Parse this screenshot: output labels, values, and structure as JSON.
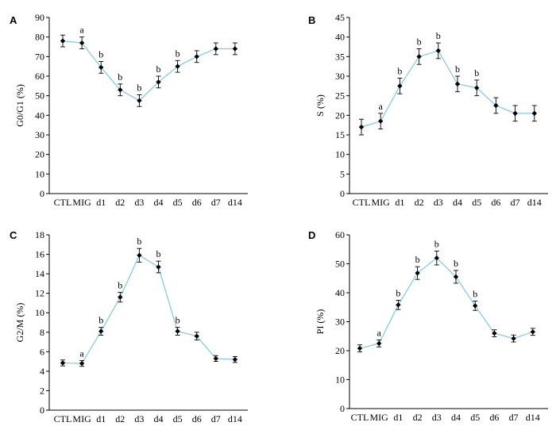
{
  "chart_data": [
    {
      "type": "line",
      "panel": "A",
      "ylabel": "G0/G1 (%)",
      "ylim": [
        0,
        90
      ],
      "ytick_step": 10,
      "categories": [
        "CTL",
        "MIG",
        "d1",
        "d2",
        "d3",
        "d4",
        "d5",
        "d6",
        "d7",
        "d14"
      ],
      "values": [
        78,
        77,
        64.5,
        53,
        47.5,
        57,
        65,
        70,
        74,
        74
      ],
      "errors": [
        3,
        3,
        3,
        3,
        3,
        3,
        3,
        3,
        3,
        3
      ],
      "annotations": [
        "",
        "a",
        "b",
        "b",
        "b",
        "b",
        "b",
        "",
        "",
        ""
      ],
      "line_color": "#7ec8e3"
    },
    {
      "type": "line",
      "panel": "B",
      "ylabel": "S (%)",
      "ylim": [
        0,
        45
      ],
      "ytick_step": 5,
      "categories": [
        "CTL",
        "MIG",
        "d1",
        "d2",
        "d3",
        "d4",
        "d5",
        "d6",
        "d7",
        "d14"
      ],
      "values": [
        17,
        18.5,
        27.5,
        35,
        36.5,
        28,
        27,
        22.5,
        20.5,
        20.5
      ],
      "errors": [
        2,
        2,
        2,
        2,
        2,
        2,
        2,
        2,
        2,
        2
      ],
      "annotations": [
        "",
        "a",
        "b",
        "b",
        "b",
        "b",
        "b",
        "",
        "",
        ""
      ],
      "line_color": "#7ec8e3"
    },
    {
      "type": "line",
      "panel": "C",
      "ylabel": "G2/M (%)",
      "ylim": [
        0,
        18
      ],
      "ytick_step": 2,
      "categories": [
        "CTL",
        "MIG",
        "d1",
        "d2",
        "d3",
        "d4",
        "d5",
        "d6",
        "d7",
        "d14"
      ],
      "values": [
        4.85,
        4.8,
        8.1,
        11.6,
        15.9,
        14.7,
        8.1,
        7.6,
        5.3,
        5.2
      ],
      "errors": [
        0.3,
        0.3,
        0.4,
        0.5,
        0.7,
        0.6,
        0.4,
        0.4,
        0.3,
        0.3
      ],
      "annotations": [
        "",
        "a",
        "b",
        "b",
        "b",
        "b",
        "b",
        "",
        "",
        ""
      ],
      "line_color": "#7ec8e3"
    },
    {
      "type": "line",
      "panel": "D",
      "ylabel": "PI (%)",
      "ylim": [
        0,
        60
      ],
      "ytick_step": 10,
      "categories": [
        "CTL",
        "MIG",
        "d1",
        "d2",
        "d3",
        "d4",
        "d5",
        "d6",
        "d7",
        "d14"
      ],
      "values": [
        20.8,
        22.5,
        35.8,
        46.8,
        52,
        45.5,
        35.5,
        26,
        24.2,
        26.5
      ],
      "errors": [
        1.2,
        1.2,
        1.6,
        2.2,
        2.4,
        2.2,
        1.6,
        1.2,
        1.2,
        1.2
      ],
      "annotations": [
        "",
        "a",
        "b",
        "b",
        "b",
        "b",
        "b",
        "",
        "",
        ""
      ],
      "line_color": "#7ec8e3"
    }
  ]
}
